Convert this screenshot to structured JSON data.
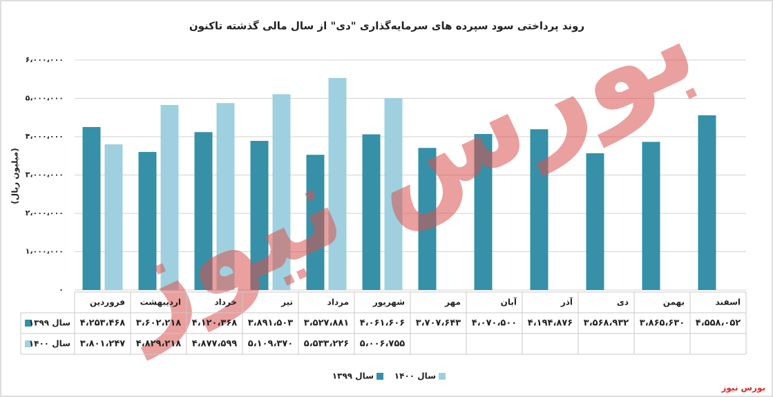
{
  "chart_data": {
    "type": "bar",
    "title": "روند پرداختی سود سپرده های سرمایه‌گذاری \"دی\" از سال مالی گذشته تاکنون",
    "y_label": "(میلیون ریال)",
    "watermark": "بورس نیوز",
    "source": "بورس نیوز",
    "categories": [
      "فروردین",
      "اردیبهشت",
      "خرداد",
      "تیر",
      "مرداد",
      "شهریور",
      "مهر",
      "آبان",
      "آذر",
      "دی",
      "بهمن",
      "اسفند"
    ],
    "series": [
      {
        "name": "سال ۱۳۹۹",
        "color": "#3590a8",
        "values": [
          4253468,
          3602218,
          4120368,
          3891503,
          3527881,
          4061606,
          3707643,
          4070500,
          4194876,
          3568932,
          3865630,
          4558052
        ],
        "value_labels": [
          "۴،۲۵۳،۴۶۸",
          "۳،۶۰۲،۲۱۸",
          "۴،۱۲۰،۳۶۸",
          "۳،۸۹۱،۵۰۳",
          "۳،۵۲۷،۸۸۱",
          "۴،۰۶۱،۶۰۶",
          "۳،۷۰۷،۶۴۳",
          "۴،۰۷۰،۵۰۰",
          "۴،۱۹۴،۸۷۶",
          "۳،۵۶۸،۹۳۲",
          "۳،۸۶۵،۶۳۰",
          "۴،۵۵۸،۰۵۲"
        ]
      },
      {
        "name": "سال ۱۴۰۰",
        "color": "#9fd0df",
        "values": [
          3801247,
          4829218,
          4877599,
          5109370,
          5533226,
          5006755,
          null,
          null,
          null,
          null,
          null,
          null
        ],
        "value_labels": [
          "۳،۸۰۱،۲۴۷",
          "۴،۸۲۹،۲۱۸",
          "۴،۸۷۷،۵۹۹",
          "۵،۱۰۹،۳۷۰",
          "۵،۵۳۳،۲۲۶",
          "۵،۰۰۶،۷۵۵",
          null,
          null,
          null,
          null,
          null,
          null
        ]
      }
    ],
    "ylim": [
      0,
      6000000
    ],
    "yticks": [
      {
        "value": 0,
        "label": "۰"
      },
      {
        "value": 1000000,
        "label": "۱،۰۰۰،۰۰۰"
      },
      {
        "value": 2000000,
        "label": "۲،۰۰۰،۰۰۰"
      },
      {
        "value": 3000000,
        "label": "۳،۰۰۰،۰۰۰"
      },
      {
        "value": 4000000,
        "label": "۴،۰۰۰،۰۰۰"
      },
      {
        "value": 5000000,
        "label": "۵،۰۰۰،۰۰۰"
      },
      {
        "value": 6000000,
        "label": "۶،۰۰۰،۰۰۰"
      }
    ],
    "grid": true
  }
}
